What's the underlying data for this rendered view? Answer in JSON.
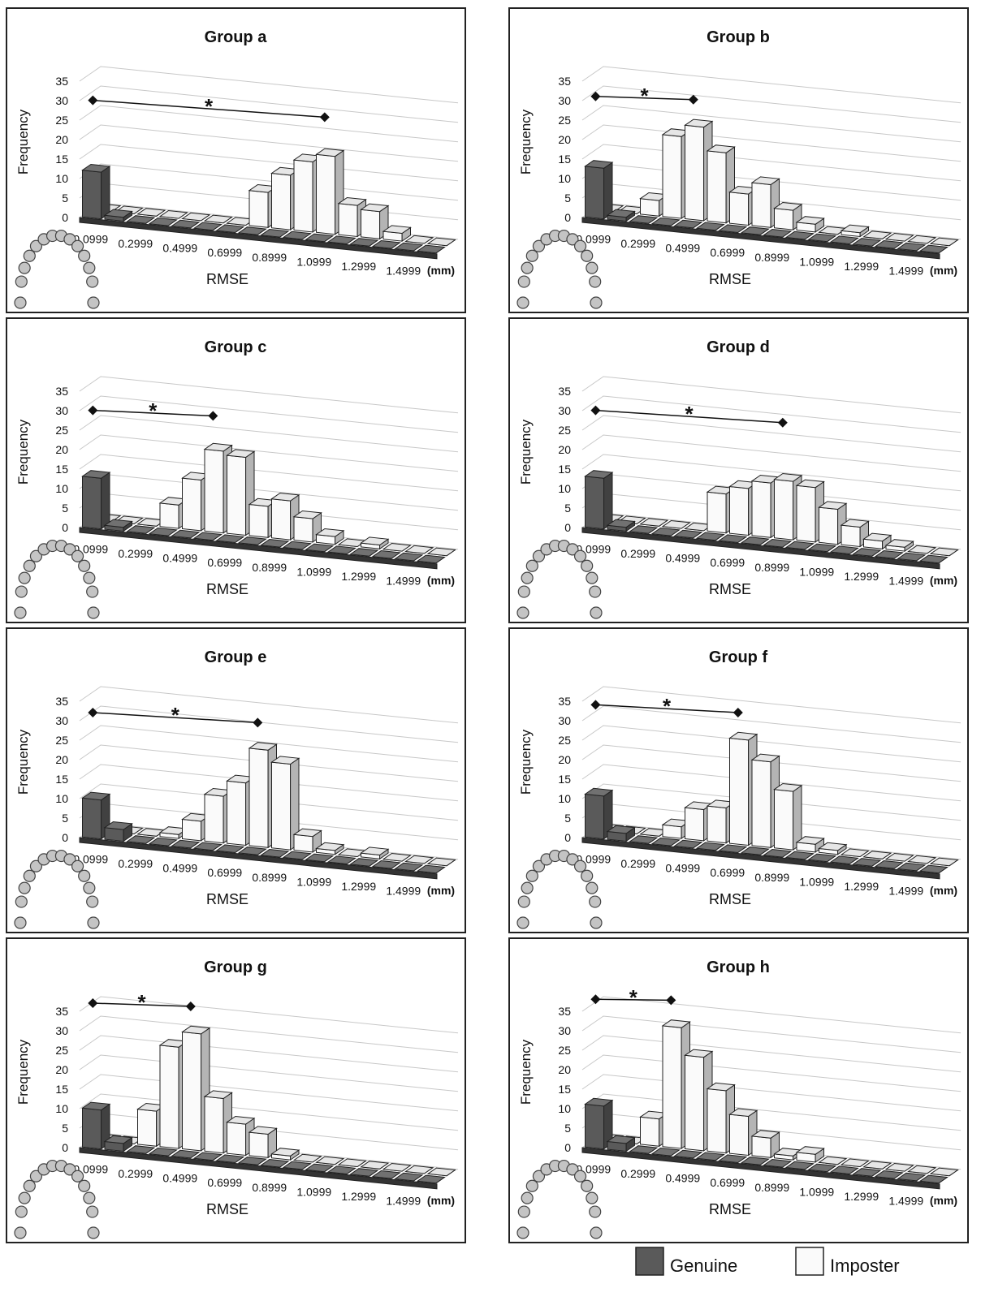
{
  "chart_data": [
    {
      "type": "bar",
      "title": "Group a",
      "categories": [
        "0.0999",
        null,
        "0.2999",
        null,
        "0.4999",
        null,
        "0.6999",
        null,
        "0.8999",
        null,
        "1.0999",
        null,
        "1.2999",
        null,
        "1.4999",
        null
      ],
      "series": [
        {
          "name": "Genuine",
          "color": "#5a5a5a",
          "values": [
            12,
            1,
            0,
            0,
            0,
            0,
            0,
            0,
            0,
            0,
            0,
            0,
            0,
            0,
            0,
            0
          ]
        },
        {
          "name": "Imposter",
          "color": "#fafafa",
          "values": [
            0,
            0,
            0,
            0,
            0,
            0,
            0,
            9,
            14,
            18,
            20,
            8,
            7,
            2,
            0,
            0
          ]
        }
      ],
      "ylim": [
        0,
        35
      ],
      "yticks": [
        0,
        5,
        10,
        15,
        20,
        25,
        30,
        35
      ],
      "grid": true,
      "x_label": "RMSE",
      "x_unit": "(mm)",
      "y_label": "Frequency",
      "annotation": "*"
    },
    {
      "type": "bar",
      "title": "Group b",
      "categories": [
        "0.0999",
        null,
        "0.2999",
        null,
        "0.4999",
        null,
        "0.6999",
        null,
        "0.8999",
        null,
        "1.0999",
        null,
        "1.2999",
        null,
        "1.4999",
        null
      ],
      "series": [
        {
          "name": "Genuine",
          "color": "#5a5a5a",
          "values": [
            13,
            1,
            0,
            0,
            0,
            0,
            0,
            0,
            0,
            0,
            0,
            0,
            0,
            0,
            0,
            0
          ]
        },
        {
          "name": "Imposter",
          "color": "#fafafa",
          "values": [
            0,
            0,
            4,
            21,
            24,
            18,
            8,
            11,
            5,
            2,
            0,
            1,
            0,
            0,
            0,
            0
          ]
        }
      ],
      "ylim": [
        0,
        35
      ],
      "yticks": [
        0,
        5,
        10,
        15,
        20,
        25,
        30,
        35
      ],
      "grid": true,
      "x_label": "RMSE",
      "x_unit": "(mm)",
      "y_label": "Frequency",
      "annotation": "*"
    },
    {
      "type": "bar",
      "title": "Group c",
      "categories": [
        "0.0999",
        null,
        "0.2999",
        null,
        "0.4999",
        null,
        "0.6999",
        null,
        "0.8999",
        null,
        "1.0999",
        null,
        "1.2999",
        null,
        "1.4999",
        null
      ],
      "series": [
        {
          "name": "Genuine",
          "color": "#5a5a5a",
          "values": [
            13,
            1,
            0,
            0,
            0,
            0,
            0,
            0,
            0,
            0,
            0,
            0,
            0,
            0,
            0,
            0
          ]
        },
        {
          "name": "Imposter",
          "color": "#fafafa",
          "values": [
            0,
            0,
            0,
            6,
            13,
            21,
            20,
            8,
            10,
            6,
            2,
            0,
            1,
            0,
            0,
            0
          ]
        }
      ],
      "ylim": [
        0,
        35
      ],
      "yticks": [
        0,
        5,
        10,
        15,
        20,
        25,
        30,
        35
      ],
      "grid": true,
      "x_label": "RMSE",
      "x_unit": "(mm)",
      "y_label": "Frequency",
      "annotation": "*"
    },
    {
      "type": "bar",
      "title": "Group d",
      "categories": [
        "0.0999",
        null,
        "0.2999",
        null,
        "0.4999",
        null,
        "0.6999",
        null,
        "0.8999",
        null,
        "1.0999",
        null,
        "1.2999",
        null,
        "1.4999",
        null
      ],
      "series": [
        {
          "name": "Genuine",
          "color": "#5a5a5a",
          "values": [
            13,
            1,
            0,
            0,
            0,
            0,
            0,
            0,
            0,
            0,
            0,
            0,
            0,
            0,
            0,
            0
          ]
        },
        {
          "name": "Imposter",
          "color": "#fafafa",
          "values": [
            0,
            0,
            0,
            0,
            0,
            10,
            12,
            14,
            15,
            14,
            9,
            5,
            2,
            1,
            0,
            0
          ]
        }
      ],
      "ylim": [
        0,
        35
      ],
      "yticks": [
        0,
        5,
        10,
        15,
        20,
        25,
        30,
        35
      ],
      "grid": true,
      "x_label": "RMSE",
      "x_unit": "(mm)",
      "y_label": "Frequency",
      "annotation": "*"
    },
    {
      "type": "bar",
      "title": "Group e",
      "categories": [
        "0.0999",
        null,
        "0.2999",
        null,
        "0.4999",
        null,
        "0.6999",
        null,
        "0.8999",
        null,
        "1.0999",
        null,
        "1.2999",
        null,
        "1.4999",
        null
      ],
      "series": [
        {
          "name": "Genuine",
          "color": "#5a5a5a",
          "values": [
            10,
            3,
            0,
            0,
            0,
            0,
            0,
            0,
            0,
            0,
            0,
            0,
            0,
            0,
            0,
            0
          ]
        },
        {
          "name": "Imposter",
          "color": "#fafafa",
          "values": [
            0,
            0,
            0,
            1,
            5,
            12,
            16,
            25,
            22,
            4,
            1,
            0,
            1,
            0,
            0,
            0
          ]
        }
      ],
      "ylim": [
        0,
        35
      ],
      "yticks": [
        0,
        5,
        10,
        15,
        20,
        25,
        30,
        35
      ],
      "grid": true,
      "x_label": "RMSE",
      "x_unit": "(mm)",
      "y_label": "Frequency",
      "annotation": "*"
    },
    {
      "type": "bar",
      "title": "Group f",
      "categories": [
        "0.0999",
        null,
        "0.2999",
        null,
        "0.4999",
        null,
        "0.6999",
        null,
        "0.8999",
        null,
        "1.0999",
        null,
        "1.2999",
        null,
        "1.4999",
        null
      ],
      "series": [
        {
          "name": "Genuine",
          "color": "#5a5a5a",
          "values": [
            11,
            2,
            0,
            0,
            0,
            0,
            0,
            0,
            0,
            0,
            0,
            0,
            0,
            0,
            0,
            0
          ]
        },
        {
          "name": "Imposter",
          "color": "#fafafa",
          "values": [
            0,
            0,
            0,
            3,
            8,
            9,
            27,
            22,
            15,
            2,
            1,
            0,
            0,
            0,
            0,
            0
          ]
        }
      ],
      "ylim": [
        0,
        35
      ],
      "yticks": [
        0,
        5,
        10,
        15,
        20,
        25,
        30,
        35
      ],
      "grid": true,
      "x_label": "RMSE",
      "x_unit": "(mm)",
      "y_label": "Frequency",
      "annotation": "*"
    },
    {
      "type": "bar",
      "title": "Group g",
      "categories": [
        "0.0999",
        null,
        "0.2999",
        null,
        "0.4999",
        null,
        "0.6999",
        null,
        "0.8999",
        null,
        "1.0999",
        null,
        "1.2999",
        null,
        "1.4999",
        null
      ],
      "series": [
        {
          "name": "Genuine",
          "color": "#5a5a5a",
          "values": [
            10,
            2,
            0,
            0,
            0,
            0,
            0,
            0,
            0,
            0,
            0,
            0,
            0,
            0,
            0,
            0
          ]
        },
        {
          "name": "Imposter",
          "color": "#fafafa",
          "values": [
            0,
            0,
            9,
            26,
            30,
            14,
            8,
            6,
            1,
            0,
            0,
            0,
            0,
            0,
            0,
            0
          ]
        }
      ],
      "ylim": [
        0,
        35
      ],
      "yticks": [
        0,
        5,
        10,
        15,
        20,
        25,
        30,
        35
      ],
      "grid": true,
      "x_label": "RMSE",
      "x_unit": "(mm)",
      "y_label": "Frequency",
      "annotation": "*"
    },
    {
      "type": "bar",
      "title": "Group h",
      "categories": [
        "0.0999",
        null,
        "0.2999",
        null,
        "0.4999",
        null,
        "0.6999",
        null,
        "0.8999",
        null,
        "1.0999",
        null,
        "1.2999",
        null,
        "1.4999",
        null
      ],
      "series": [
        {
          "name": "Genuine",
          "color": "#5a5a5a",
          "values": [
            11,
            2,
            0,
            0,
            0,
            0,
            0,
            0,
            0,
            0,
            0,
            0,
            0,
            0,
            0,
            0
          ]
        },
        {
          "name": "Imposter",
          "color": "#fafafa",
          "values": [
            0,
            0,
            7,
            31,
            24,
            16,
            10,
            5,
            1,
            2,
            0,
            0,
            0,
            0,
            0,
            0
          ]
        }
      ],
      "ylim": [
        0,
        35
      ],
      "yticks": [
        0,
        5,
        10,
        15,
        20,
        25,
        30,
        35
      ],
      "grid": true,
      "x_label": "RMSE",
      "x_unit": "(mm)",
      "y_label": "Frequency",
      "annotation": "*"
    }
  ]
}
